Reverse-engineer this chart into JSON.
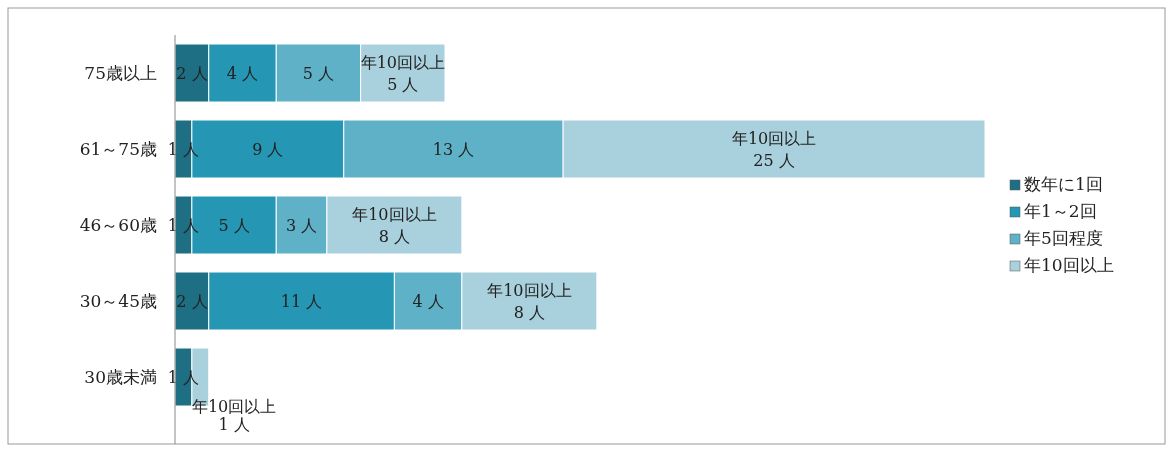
{
  "chart_data": {
    "type": "bar",
    "orientation": "horizontal",
    "stacked": true,
    "categories": [
      "75歳以上",
      "61～75歳",
      "46～60歳",
      "30～45歳",
      "30歳未満"
    ],
    "series": [
      {
        "name": "数年に1回",
        "color": "#1f6f84",
        "values": [
          2,
          1,
          1,
          2,
          1
        ],
        "value_labels": [
          "2 人",
          "1 人",
          "1 人",
          "2 人",
          "1 人"
        ]
      },
      {
        "name": "年1～2回",
        "color": "#2596b3",
        "values": [
          4,
          9,
          5,
          11,
          null
        ],
        "value_labels": [
          "4 人",
          "9 人",
          "5 人",
          "11 人",
          null
        ]
      },
      {
        "name": "年5回程度",
        "color": "#5fb1c8",
        "values": [
          5,
          13,
          3,
          4,
          null
        ],
        "value_labels": [
          "5 人",
          "13 人",
          "3 人",
          "4 人",
          null
        ]
      },
      {
        "name": "年10回以上",
        "color": "#a9d0dd",
        "values": [
          5,
          25,
          8,
          8,
          1
        ],
        "value_labels": [
          "年10回以上\n5 人",
          "年10回以上\n25 人",
          "年10回以上\n8 人",
          "年10回以上\n8 人",
          "年10回以上\n1 人"
        ]
      }
    ],
    "legend": "right"
  }
}
